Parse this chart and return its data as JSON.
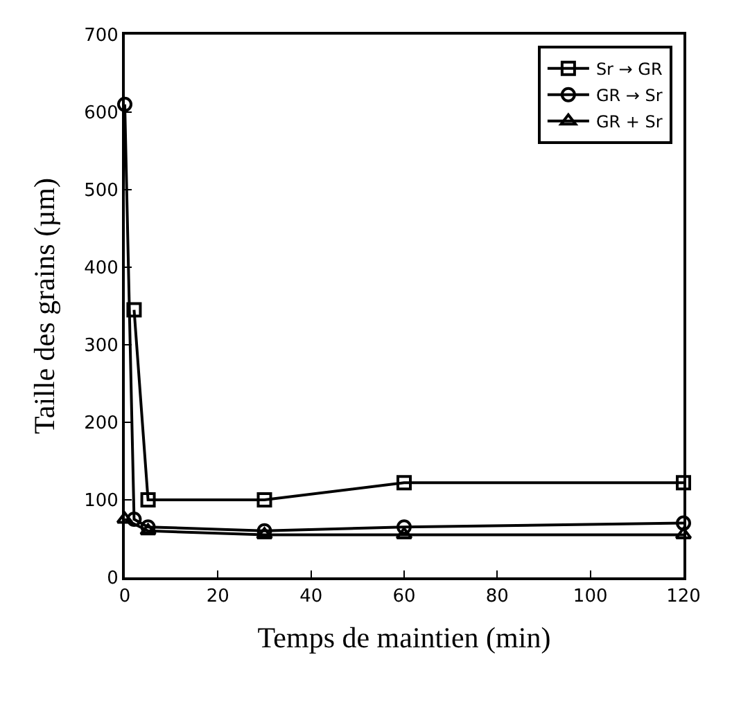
{
  "chart_data": {
    "type": "line",
    "xlabel": "Temps de maintien (min)",
    "ylabel": "Taille des grains (µm)",
    "xlim": [
      0,
      120
    ],
    "xticks": [
      0,
      20,
      40,
      60,
      80,
      100,
      120
    ],
    "ylim": [
      0,
      700
    ],
    "yticks": [
      0,
      100,
      200,
      300,
      400,
      500,
      600,
      700
    ],
    "legend": "top right",
    "line_style": "solid",
    "series": [
      {
        "name": "Sr → GR",
        "color": "#000000",
        "marker": "square",
        "x": [
          2,
          5,
          30,
          60,
          120
        ],
        "values": [
          345,
          100,
          100,
          122,
          122
        ]
      },
      {
        "name": "GR → Sr",
        "color": "#000000",
        "marker": "circle",
        "x": [
          0,
          2,
          5,
          30,
          60,
          120
        ],
        "values": [
          610,
          75,
          65,
          60,
          65,
          70
        ]
      },
      {
        "name": "GR + Sr",
        "color": "#000000",
        "marker": "triangle",
        "x": [
          0,
          5,
          30,
          60,
          120
        ],
        "values": [
          75,
          60,
          55,
          55,
          55
        ]
      }
    ]
  }
}
